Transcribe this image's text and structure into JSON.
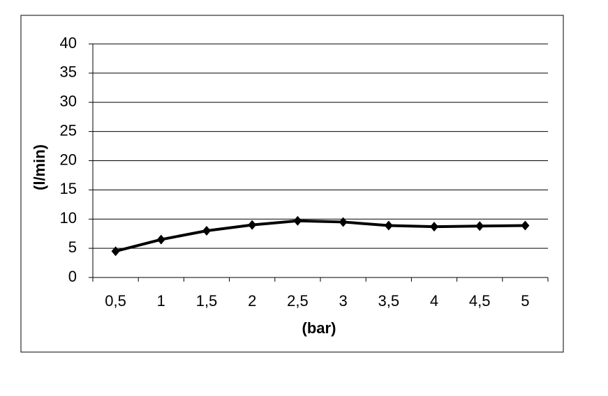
{
  "chart_data": {
    "type": "line",
    "x_label": "(bar)",
    "y_label": "(l/min)",
    "categories": [
      "0,5",
      "1",
      "1,5",
      "2",
      "2,5",
      "3",
      "3,5",
      "4",
      "4,5",
      "5"
    ],
    "values": [
      4.5,
      6.5,
      8,
      9,
      9.7,
      9.5,
      8.9,
      8.7,
      8.8,
      8.9
    ],
    "color": "#000000",
    "ylim": [
      0,
      40
    ],
    "yticks": [
      0,
      5,
      10,
      15,
      20,
      25,
      30,
      35,
      40
    ],
    "grid": true
  }
}
